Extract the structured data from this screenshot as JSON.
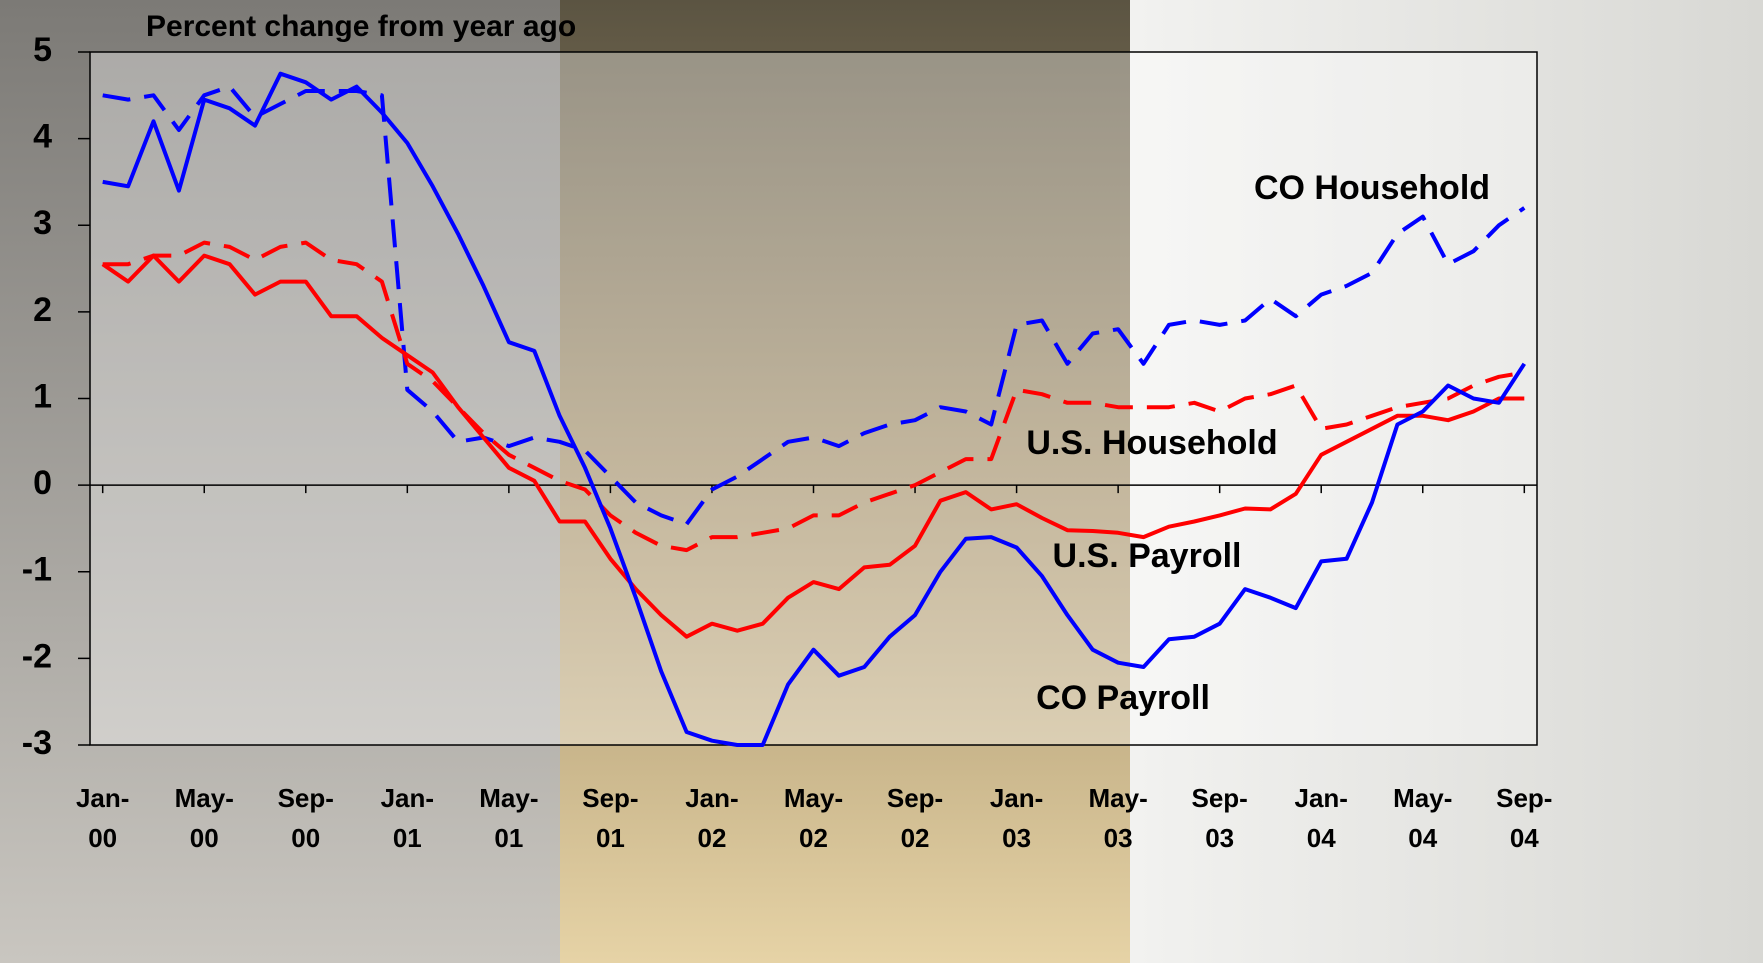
{
  "chart_data": {
    "type": "line",
    "title": "Percent change from year ago",
    "categories": [
      "Jan-00",
      null,
      null,
      null,
      "May-00",
      null,
      null,
      null,
      "Sep-00",
      null,
      null,
      null,
      "Jan-01",
      null,
      null,
      null,
      "May-01",
      null,
      null,
      null,
      "Sep-01",
      null,
      null,
      null,
      "Jan-02",
      null,
      null,
      null,
      "May-02",
      null,
      null,
      null,
      "Sep-02",
      null,
      null,
      null,
      "Jan-03",
      null,
      null,
      null,
      "May-03",
      null,
      null,
      null,
      "Sep-03",
      null,
      null,
      null,
      "Jan-04",
      null,
      null,
      null,
      "May-04",
      null,
      null,
      null,
      "Sep-04"
    ],
    "series": [
      {
        "name": "CO Household",
        "color": "#0000ff",
        "style": "dashed",
        "values": [
          4.5,
          4.45,
          4.5,
          4.1,
          4.5,
          4.6,
          4.25,
          4.4,
          4.55,
          4.55,
          4.55,
          4.5,
          1.1,
          0.85,
          0.5,
          0.55,
          0.45,
          0.55,
          0.5,
          0.4,
          0.1,
          -0.2,
          -0.35,
          -0.45,
          -0.05,
          0.1,
          0.3,
          0.5,
          0.55,
          0.45,
          0.6,
          0.7,
          0.75,
          0.9,
          0.85,
          0.7,
          1.85,
          1.9,
          1.4,
          1.75,
          1.8,
          1.4,
          1.85,
          1.9,
          1.85,
          1.9,
          2.15,
          1.95,
          2.2,
          2.3,
          2.45,
          2.9,
          3.1,
          2.55,
          2.7,
          3.0,
          3.2
        ]
      },
      {
        "name": "U.S. Household",
        "color": "#ff0000",
        "style": "dashed",
        "values": [
          2.55,
          2.55,
          2.65,
          2.65,
          2.8,
          2.75,
          2.6,
          2.75,
          2.8,
          2.6,
          2.55,
          2.35,
          1.4,
          1.2,
          0.9,
          0.6,
          0.35,
          0.2,
          0.05,
          -0.05,
          -0.35,
          -0.55,
          -0.7,
          -0.75,
          -0.6,
          -0.6,
          -0.55,
          -0.5,
          -0.35,
          -0.35,
          -0.2,
          -0.1,
          0.0,
          0.15,
          0.3,
          0.3,
          1.1,
          1.05,
          0.95,
          0.95,
          0.9,
          0.9,
          0.9,
          0.95,
          0.85,
          1.0,
          1.05,
          1.15,
          0.65,
          0.7,
          0.8,
          0.9,
          0.95,
          1.0,
          1.15,
          1.25,
          1.3
        ]
      },
      {
        "name": "U.S. Payroll",
        "color": "#ff0000",
        "style": "solid",
        "values": [
          2.55,
          2.35,
          2.65,
          2.35,
          2.65,
          2.55,
          2.2,
          2.35,
          2.35,
          1.95,
          1.95,
          1.7,
          1.5,
          1.3,
          0.9,
          0.55,
          0.2,
          0.05,
          -0.42,
          -0.42,
          -0.85,
          -1.2,
          -1.5,
          -1.75,
          -1.6,
          -1.68,
          -1.6,
          -1.3,
          -1.12,
          -1.2,
          -0.95,
          -0.92,
          -0.7,
          -0.18,
          -0.08,
          -0.28,
          -0.22,
          -0.38,
          -0.52,
          -0.53,
          -0.55,
          -0.6,
          -0.48,
          -0.42,
          -0.35,
          -0.27,
          -0.28,
          -0.1,
          0.35,
          0.5,
          0.65,
          0.8,
          0.8,
          0.75,
          0.85,
          1.0,
          1.0
        ]
      },
      {
        "name": "CO Payroll",
        "color": "#0000ff",
        "style": "solid",
        "values": [
          3.5,
          3.45,
          4.2,
          3.4,
          4.45,
          4.35,
          4.15,
          4.75,
          4.65,
          4.45,
          4.6,
          4.3,
          3.95,
          3.45,
          2.9,
          2.3,
          1.65,
          1.55,
          0.8,
          0.2,
          -0.5,
          -1.3,
          -2.15,
          -2.85,
          -2.95,
          -3.0,
          -3.0,
          -2.3,
          -1.9,
          -2.2,
          -2.1,
          -1.75,
          -1.5,
          -1.0,
          -0.62,
          -0.6,
          -0.72,
          -1.05,
          -1.5,
          -1.9,
          -2.05,
          -2.1,
          -1.78,
          -1.75,
          -1.6,
          -1.2,
          -1.3,
          -1.42,
          -0.88,
          -0.85,
          -0.2,
          0.7,
          0.85,
          1.15,
          1.0,
          0.95,
          1.4
        ]
      }
    ],
    "ylim": [
      -3,
      5
    ],
    "yticks": [
      -3,
      -2,
      -1,
      0,
      1,
      2,
      3,
      4,
      5
    ]
  }
}
